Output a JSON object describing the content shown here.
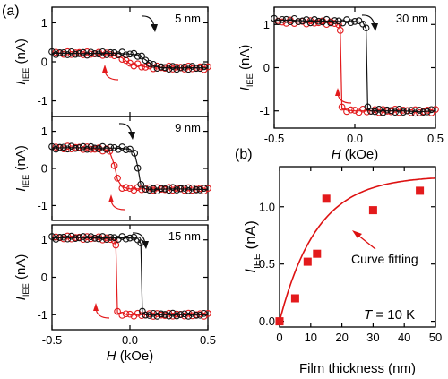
{
  "panel_labels": {
    "a": "(a)",
    "b": "(b)"
  },
  "colors": {
    "sweep_down": "#111111",
    "sweep_up": "#e31a1c",
    "fit_line": "#dd1111",
    "thickness_data": "#e31a1c"
  },
  "chart_data": [
    {
      "id": "a1",
      "type": "line",
      "thickness_label": "5 nm",
      "ylabel": "I_IEE (nA)",
      "xlim": [
        -0.5,
        0.5
      ],
      "ylim": [
        -1.4,
        1.4
      ],
      "xticks": [
        "-0.5",
        "0.0",
        "0.5"
      ],
      "yticks": [
        "-1",
        "0",
        "1"
      ],
      "series": [
        {
          "x": [
            -0.5,
            -0.4,
            -0.3,
            -0.2,
            -0.1,
            0.0,
            0.05,
            0.1,
            0.15,
            0.2,
            0.3,
            0.4,
            0.5
          ],
          "y": [
            0.22,
            0.22,
            0.21,
            0.22,
            0.22,
            0.2,
            0.18,
            0.05,
            -0.1,
            -0.15,
            -0.16,
            -0.15,
            -0.16
          ]
        },
        {
          "x": [
            0.5,
            0.4,
            0.3,
            0.2,
            0.1,
            0.0,
            -0.05,
            -0.1,
            -0.15,
            -0.2,
            -0.3,
            -0.4,
            -0.5
          ],
          "y": [
            -0.16,
            -0.15,
            -0.15,
            -0.14,
            -0.13,
            -0.05,
            0.1,
            0.18,
            0.2,
            0.21,
            0.22,
            0.22,
            0.22
          ]
        }
      ]
    },
    {
      "id": "a2",
      "type": "line",
      "thickness_label": "9 nm",
      "ylabel": "I_IEE (nA)",
      "xlim": [
        -0.5,
        0.5
      ],
      "ylim": [
        -1.4,
        1.4
      ],
      "xticks": [
        "-0.5",
        "0.0",
        "0.5"
      ],
      "yticks": [
        "-1",
        "0",
        "1"
      ],
      "series": [
        {
          "x": [
            -0.5,
            -0.4,
            -0.3,
            -0.2,
            -0.1,
            -0.05,
            0.0,
            0.03,
            0.05,
            0.07,
            0.1,
            0.15,
            0.2,
            0.3,
            0.4,
            0.5
          ],
          "y": [
            0.55,
            0.56,
            0.56,
            0.55,
            0.55,
            0.54,
            0.52,
            0.4,
            0.05,
            -0.45,
            -0.55,
            -0.58,
            -0.56,
            -0.55,
            -0.56,
            -0.57
          ]
        },
        {
          "x": [
            0.5,
            0.4,
            0.3,
            0.2,
            0.1,
            0.0,
            -0.05,
            -0.08,
            -0.1,
            -0.13,
            -0.15,
            -0.2,
            -0.3,
            -0.4,
            -0.5
          ],
          "y": [
            -0.57,
            -0.56,
            -0.55,
            -0.55,
            -0.55,
            -0.55,
            -0.5,
            -0.3,
            0.1,
            0.45,
            0.5,
            0.52,
            0.55,
            0.56,
            0.55
          ]
        }
      ]
    },
    {
      "id": "a3",
      "type": "line",
      "thickness_label": "15 nm",
      "ylabel": "I_IEE (nA)",
      "xlabel": "H (kOe)",
      "xlim": [
        -0.5,
        0.5
      ],
      "ylim": [
        -1.4,
        1.4
      ],
      "xticks": [
        "-0.5",
        "0.0",
        "0.5"
      ],
      "yticks": [
        "-1",
        "0",
        "1"
      ],
      "series": [
        {
          "x": [
            -0.5,
            -0.4,
            -0.3,
            -0.2,
            -0.1,
            0.0,
            0.05,
            0.07,
            0.08,
            0.1,
            0.2,
            0.3,
            0.4,
            0.5
          ],
          "y": [
            1.05,
            1.06,
            1.06,
            1.05,
            1.05,
            1.05,
            1.04,
            0.9,
            -0.95,
            -1.0,
            -1.0,
            -1.0,
            -1.0,
            -1.0
          ]
        },
        {
          "x": [
            0.5,
            0.4,
            0.3,
            0.2,
            0.1,
            0.0,
            -0.05,
            -0.08,
            -0.09,
            -0.1,
            -0.2,
            -0.3,
            -0.4,
            -0.5
          ],
          "y": [
            -1.0,
            -1.0,
            -1.0,
            -1.0,
            -1.0,
            -1.0,
            -0.98,
            -0.95,
            0.85,
            1.0,
            1.05,
            1.05,
            1.06,
            1.05
          ]
        }
      ]
    },
    {
      "id": "a4",
      "type": "line",
      "thickness_label": "30 nm",
      "ylabel": "I_IEE (nA)",
      "xlabel": "H (kOe)",
      "xlim": [
        -0.5,
        0.5
      ],
      "ylim": [
        -1.4,
        1.4
      ],
      "xticks": [
        "-0.5",
        "0.0",
        "0.5"
      ],
      "yticks": [
        "-1",
        "0",
        "1"
      ],
      "series": [
        {
          "x": [
            -0.5,
            -0.4,
            -0.3,
            -0.2,
            -0.1,
            0.0,
            0.05,
            0.07,
            0.08,
            0.1,
            0.2,
            0.3,
            0.4,
            0.5
          ],
          "y": [
            1.1,
            1.1,
            1.08,
            1.08,
            1.07,
            1.07,
            1.05,
            0.9,
            -0.95,
            -1.0,
            -1.0,
            -1.0,
            -1.02,
            -1.0
          ]
        },
        {
          "x": [
            0.5,
            0.4,
            0.3,
            0.2,
            0.1,
            0.0,
            -0.05,
            -0.08,
            -0.09,
            -0.1,
            -0.2,
            -0.3,
            -0.4,
            -0.5
          ],
          "y": [
            -1.0,
            -1.02,
            -1.0,
            -1.0,
            -1.0,
            -1.0,
            -0.98,
            -0.95,
            0.85,
            1.02,
            1.05,
            1.05,
            1.06,
            1.05
          ]
        }
      ]
    },
    {
      "id": "b",
      "type": "scatter",
      "xlabel": "Film thickness (nm)",
      "ylabel": "I_IEE (nA)",
      "xlim": [
        0,
        50
      ],
      "ylim": [
        -0.05,
        1.35
      ],
      "xticks": [
        "0",
        "10",
        "20",
        "30",
        "40",
        "50"
      ],
      "yticks": [
        "0.0",
        "0.5",
        "1.0"
      ],
      "x": [
        0,
        5,
        9,
        12,
        15,
        30,
        45
      ],
      "y": [
        0.0,
        0.2,
        0.52,
        0.59,
        1.07,
        0.97,
        1.14
      ],
      "fit_label": "Curve fitting",
      "fit": {
        "model": "exponential saturation",
        "amplitude": 1.27,
        "length": 12
      },
      "annotation": "T = 10 K"
    }
  ]
}
